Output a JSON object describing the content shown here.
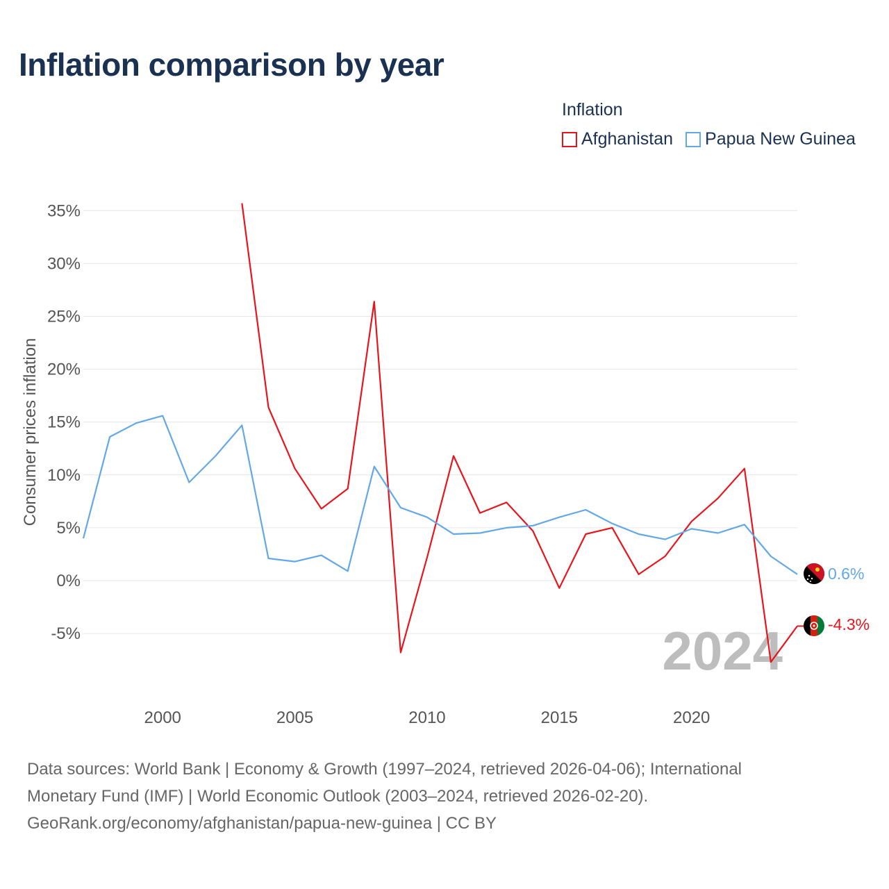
{
  "title": "Inflation comparison by year",
  "legend": {
    "title": "Inflation",
    "items": [
      {
        "label": "Afghanistan",
        "color": "#e8141c"
      },
      {
        "label": "Papua New Guinea",
        "color": "#63a8e6"
      }
    ]
  },
  "year_watermark": "2024",
  "end_labels": {
    "png": "0.6%",
    "afg": "-4.3%"
  },
  "footer": {
    "line1": "Data sources: World Bank | Economy & Growth (1997–2024, retrieved 2026-04-06); International",
    "line2": "Monetary Fund (IMF) | World Economic Outlook (2003–2024, retrieved 2026-02-20).",
    "line3": "GeoRank.org/economy/afghanistan/papua-new-guinea | CC BY"
  },
  "chart_data": {
    "type": "line",
    "title": "Inflation comparison by year",
    "xlabel": "",
    "ylabel": "Consumer prices inflation",
    "xlim": [
      1997,
      2024
    ],
    "ylim": [
      -10,
      35
    ],
    "x_ticks": [
      2000,
      2005,
      2010,
      2015,
      2020
    ],
    "y_ticks": [
      35,
      30,
      25,
      20,
      15,
      10,
      5,
      0,
      -5
    ],
    "y_tick_labels": [
      "35%",
      "30%",
      "25%",
      "20%",
      "15%",
      "10%",
      "5%",
      "0%",
      "-5%"
    ],
    "series": [
      {
        "name": "Afghanistan",
        "color": "#e8141c",
        "x": [
          2003,
          2004,
          2005,
          2006,
          2007,
          2008,
          2009,
          2010,
          2011,
          2012,
          2013,
          2014,
          2015,
          2016,
          2017,
          2018,
          2019,
          2020,
          2021,
          2022,
          2023,
          2024
        ],
        "values": [
          35.7,
          16.4,
          10.6,
          6.8,
          8.7,
          26.4,
          -6.8,
          2.2,
          11.8,
          6.4,
          7.4,
          4.7,
          -0.7,
          4.4,
          5.0,
          0.6,
          2.3,
          5.6,
          7.8,
          10.6,
          -7.7,
          -4.3
        ]
      },
      {
        "name": "Papua New Guinea",
        "color": "#63a8e6",
        "x": [
          1997,
          1998,
          1999,
          2000,
          2001,
          2002,
          2003,
          2004,
          2005,
          2006,
          2007,
          2008,
          2009,
          2010,
          2011,
          2012,
          2013,
          2014,
          2015,
          2016,
          2017,
          2018,
          2019,
          2020,
          2021,
          2022,
          2023,
          2024
        ],
        "values": [
          4.0,
          13.6,
          14.9,
          15.6,
          9.3,
          11.8,
          14.7,
          2.1,
          1.8,
          2.4,
          0.9,
          10.8,
          6.9,
          6.0,
          4.4,
          4.5,
          5.0,
          5.2,
          6.0,
          6.7,
          5.4,
          4.4,
          3.9,
          4.9,
          4.5,
          5.3,
          2.3,
          0.6
        ]
      }
    ]
  }
}
